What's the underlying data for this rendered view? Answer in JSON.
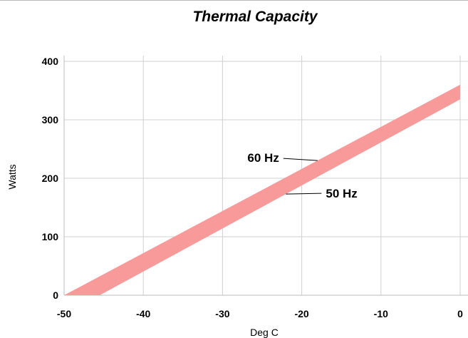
{
  "chart_data": {
    "type": "area",
    "title": "Thermal Capacity",
    "xlabel": "Deg C",
    "ylabel": "Watts",
    "xlim": [
      -50,
      0
    ],
    "ylim": [
      0,
      400
    ],
    "x_ticks": [
      -50,
      -40,
      -30,
      -20,
      -10,
      0
    ],
    "y_ticks": [
      0,
      100,
      200,
      300,
      400
    ],
    "grid": true,
    "band": {
      "color": "#f89a9a",
      "upper": {
        "name": "60 Hz",
        "x": [
          -50,
          0
        ],
        "y": [
          0,
          360
        ]
      },
      "lower": {
        "name": "50 Hz",
        "x": [
          -45.5,
          0
        ],
        "y": [
          0,
          335
        ]
      }
    },
    "annotations": [
      {
        "text": "60 Hz",
        "x": -18,
        "y": 225,
        "series": "upper"
      },
      {
        "text": "50 Hz",
        "x": -22,
        "y": 180,
        "series": "lower"
      }
    ]
  }
}
